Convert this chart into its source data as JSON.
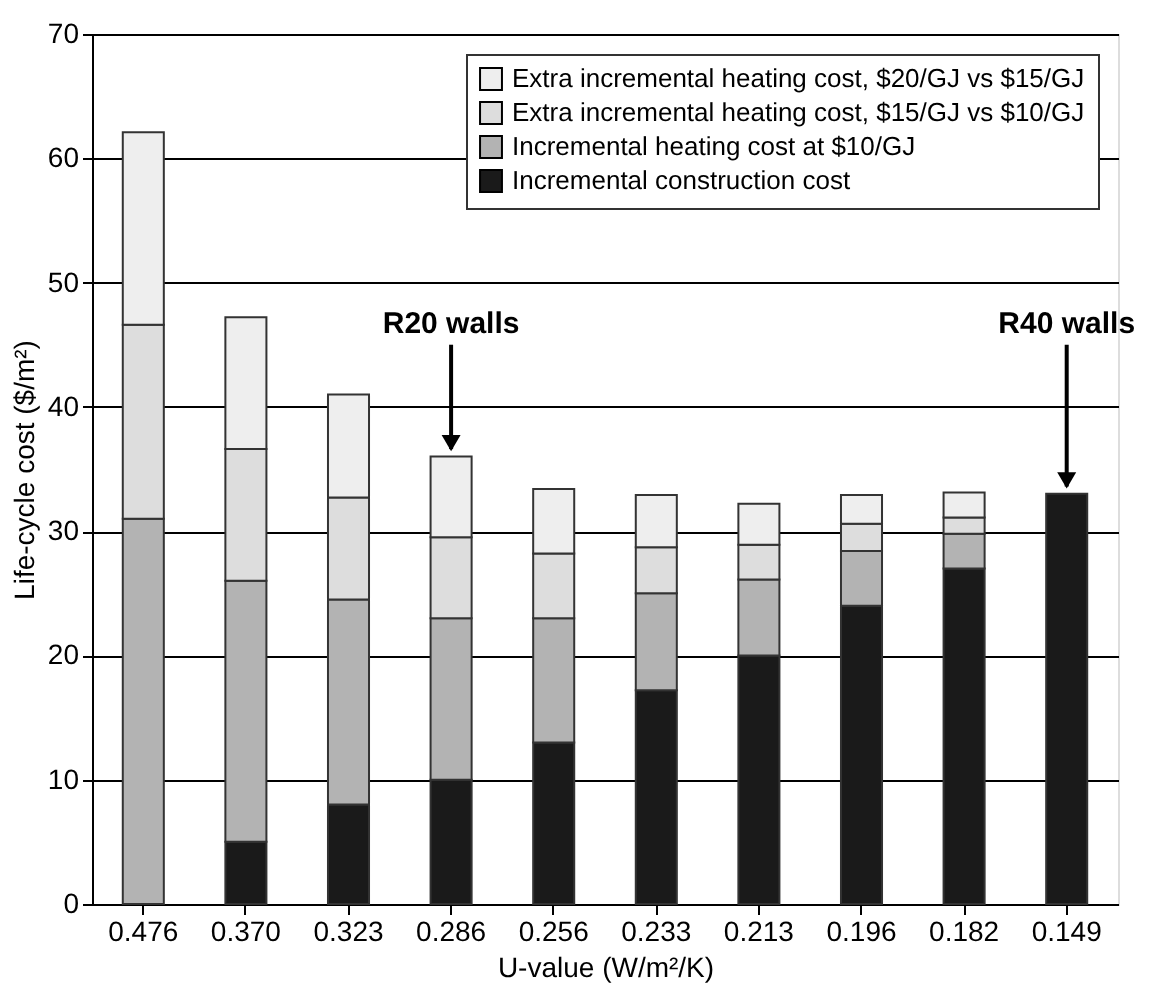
{
  "chart_data": {
    "type": "bar",
    "stacked": true,
    "categories": [
      "0.476",
      "0.370",
      "0.323",
      "0.286",
      "0.256",
      "0.233",
      "0.213",
      "0.196",
      "0.182",
      "0.149"
    ],
    "series": [
      {
        "name": "Incremental construction cost",
        "color": "#1a1a1a",
        "values": [
          null,
          5,
          8,
          10,
          13,
          17.2,
          20,
          24,
          27,
          33
        ]
      },
      {
        "name": "Incremental heating cost at $10/GJ",
        "color": "#b3b3b3",
        "values": [
          31,
          21,
          16.5,
          13,
          10,
          7.8,
          6.1,
          4.4,
          2.8,
          null
        ]
      },
      {
        "name": "Extra incremental heating cost, $15/GJ vs $10/GJ",
        "color": "#dddddd",
        "values": [
          15.6,
          10.6,
          8.2,
          6.5,
          5.2,
          3.7,
          2.8,
          2.2,
          1.3,
          null
        ]
      },
      {
        "name": "Extra incremental heating cost, $20/GJ vs $15/GJ",
        "color": "#eeeeee",
        "values": [
          15.5,
          10.6,
          8.3,
          6.5,
          5.2,
          4.2,
          3.3,
          2.3,
          2.0,
          null
        ]
      }
    ],
    "xlabel": "U-value (W/m²/K)",
    "ylabel": "Life-cycle cost ($/m²)",
    "ylim": [
      0,
      70
    ],
    "yticks": [
      0,
      10,
      20,
      30,
      40,
      50,
      60,
      70
    ],
    "grid": "y",
    "legend": "top right",
    "annotations": [
      {
        "text": "R20 walls",
        "x": "0.286",
        "y": 36
      },
      {
        "text": "R40 walls",
        "x": "0.149",
        "y": 33
      }
    ]
  }
}
